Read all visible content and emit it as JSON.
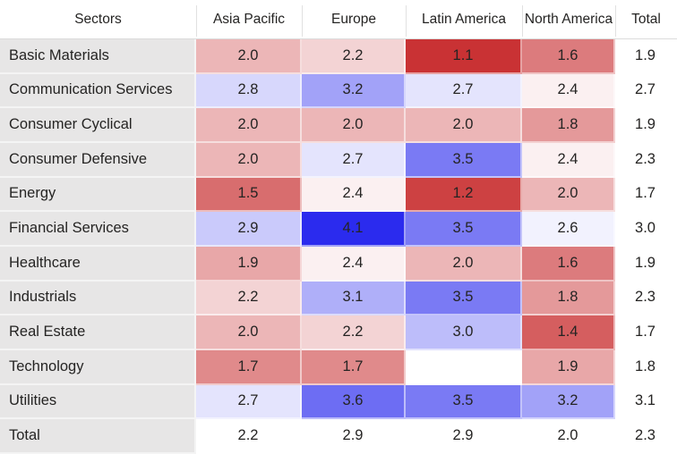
{
  "chart_data": {
    "type": "heatmap",
    "row_dimension": "Sectors",
    "columns": [
      "Asia Pacific",
      "Europe",
      "Latin America",
      "North America"
    ],
    "total_column_label": "Total",
    "rows": [
      {
        "label": "Basic Materials",
        "values": [
          2.0,
          2.2,
          1.1,
          1.6
        ],
        "total": 1.9
      },
      {
        "label": "Communication Services",
        "values": [
          2.8,
          3.2,
          2.7,
          2.4
        ],
        "total": 2.7
      },
      {
        "label": "Consumer Cyclical",
        "values": [
          2.0,
          2.0,
          2.0,
          1.8
        ],
        "total": 1.9
      },
      {
        "label": "Consumer Defensive",
        "values": [
          2.0,
          2.7,
          3.5,
          2.4
        ],
        "total": 2.3
      },
      {
        "label": "Energy",
        "values": [
          1.5,
          2.4,
          1.2,
          2.0
        ],
        "total": 1.7
      },
      {
        "label": "Financial Services",
        "values": [
          2.9,
          4.1,
          3.5,
          2.6
        ],
        "total": 3.0
      },
      {
        "label": "Healthcare",
        "values": [
          1.9,
          2.4,
          2.0,
          1.6
        ],
        "total": 1.9
      },
      {
        "label": "Industrials",
        "values": [
          2.2,
          3.1,
          3.5,
          1.8
        ],
        "total": 2.3
      },
      {
        "label": "Real Estate",
        "values": [
          2.0,
          2.2,
          3.0,
          1.4
        ],
        "total": 1.7
      },
      {
        "label": "Technology",
        "values": [
          1.7,
          1.7,
          null,
          1.9
        ],
        "total": 1.8
      },
      {
        "label": "Utilities",
        "values": [
          2.7,
          3.6,
          3.5,
          3.2
        ],
        "total": 3.1
      },
      {
        "label": "Total",
        "values": [
          2.2,
          2.9,
          2.9,
          2.0
        ],
        "total": 2.3,
        "is_total": true
      }
    ],
    "color_scale": {
      "domain_min": 1.1,
      "domain_center": 2.5,
      "domain_max": 4.1,
      "min_color": "#C93234",
      "center_color": "#FFFFFF",
      "max_color": "#2B2BEE",
      "note": "diverging red-white-blue; Total row and Total column uncolored"
    },
    "colors": {
      "row_header_bg": "#E7E6E6",
      "header_text": "#252423",
      "cell_text": "#252423",
      "grid_separator": "rgba(255,255,255,0.55)",
      "header_divider": "#E1E1E1",
      "header_underline": "#DBDBDB"
    },
    "layout": {
      "legend": false,
      "grid": true
    }
  }
}
